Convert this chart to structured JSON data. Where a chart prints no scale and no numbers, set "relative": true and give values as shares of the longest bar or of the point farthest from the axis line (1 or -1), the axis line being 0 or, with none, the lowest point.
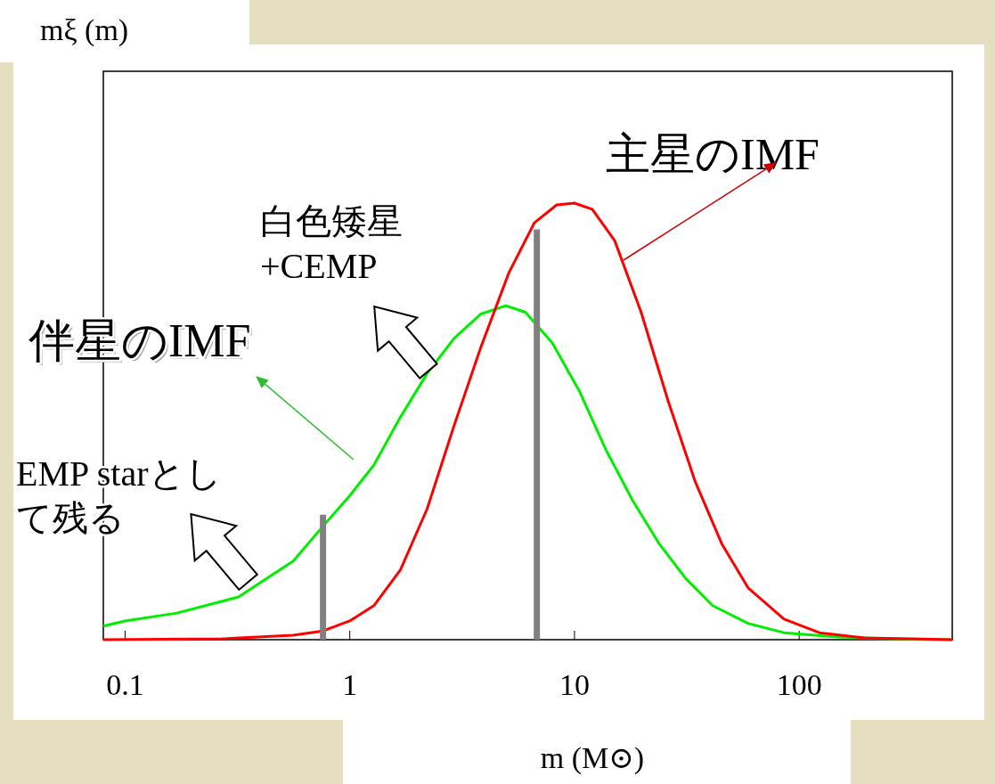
{
  "chart_data": {
    "type": "line",
    "relative": true,
    "log": "x",
    "xlabel": "m (M⊙)",
    "xlim": [
      0.08,
      480
    ],
    "xticks": [
      0.1,
      1,
      10,
      100
    ],
    "grid": false,
    "marker": "none",
    "line_style": "solid",
    "series": [
      {
        "color": "#00ee00",
        "x": [
          0.08,
          0.1,
          0.17,
          0.32,
          0.56,
          0.76,
          1,
          1.28,
          1.68,
          2.21,
          2.91,
          3.83,
          4.95,
          6.05,
          7.96,
          10.5,
          13.8,
          18.1,
          23.8,
          31.3,
          41.2,
          59.4,
          85.6,
          148,
          257,
          480
        ],
        "values": [
          0.031,
          0.043,
          0.061,
          0.098,
          0.18,
          0.26,
          0.33,
          0.4,
          0.51,
          0.61,
          0.69,
          0.746,
          0.765,
          0.75,
          0.68,
          0.57,
          0.435,
          0.32,
          0.22,
          0.14,
          0.078,
          0.037,
          0.016,
          0.006,
          0.002,
          0
        ]
      },
      {
        "color": "#ff0000",
        "x": [
          0.08,
          0.27,
          0.56,
          0.76,
          1,
          1.28,
          1.68,
          2.21,
          2.91,
          3.83,
          5.1,
          6.63,
          8.33,
          10,
          12,
          15.1,
          19.8,
          26.1,
          34.4,
          45.2,
          59.4,
          85.6,
          123,
          195,
          308,
          480
        ],
        "values": [
          0,
          0.002,
          0.01,
          0.02,
          0.043,
          0.078,
          0.16,
          0.3,
          0.49,
          0.67,
          0.84,
          0.955,
          0.996,
          1,
          0.986,
          0.914,
          0.75,
          0.547,
          0.363,
          0.22,
          0.118,
          0.047,
          0.016,
          0.004,
          0.002,
          0
        ]
      },
      {
        "color": "#808080",
        "x": [
          0.76,
          0.76
        ],
        "values": [
          0,
          0.286
        ]
      },
      {
        "color": "#808080",
        "x": [
          6.8,
          6.8
        ],
        "values": [
          0,
          0.94
        ]
      }
    ],
    "annotations": [
      "mξ (m)",
      "主星のIMF",
      "白色矮星\n+CEMP",
      "伴星のIMF",
      "EMP starとして残る"
    ]
  }
}
